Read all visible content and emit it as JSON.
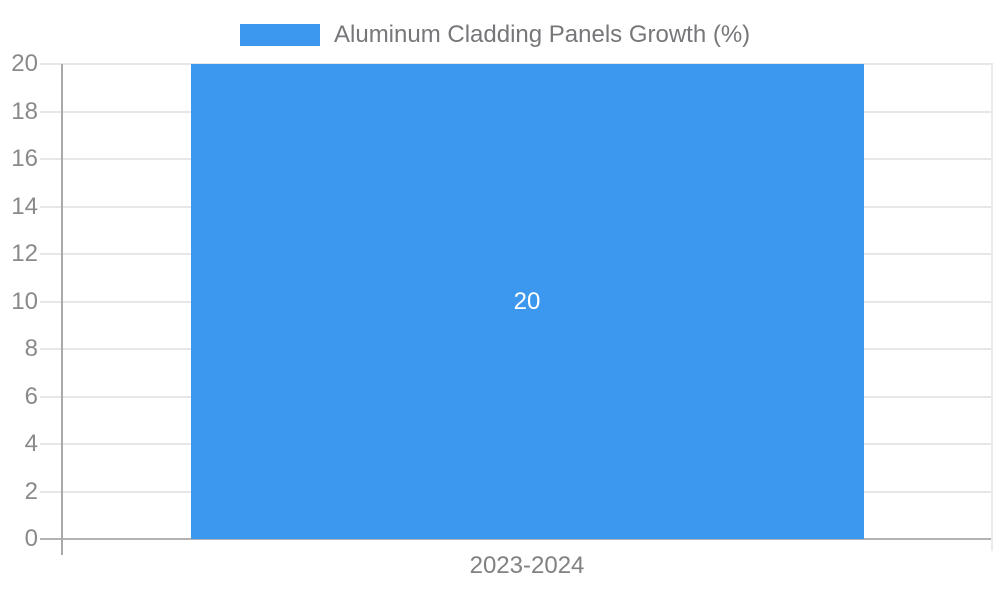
{
  "chart_data": {
    "type": "bar",
    "title": "Aluminum Cladding Panels Growth (%)",
    "categories": [
      "2023-2024"
    ],
    "values": [
      20
    ],
    "bar_label": "20",
    "xlabel": "",
    "ylabel": "",
    "ylim": [
      0,
      20
    ],
    "ytick_step": 2,
    "y_tick_labels": [
      "0",
      "2",
      "4",
      "6",
      "8",
      "10",
      "12",
      "14",
      "16",
      "18",
      "20"
    ],
    "grid": true,
    "legend_position": "top"
  },
  "colors": {
    "bar": "#3b98ee",
    "bar_value_text": "#ffffff",
    "legend_text": "#76777a",
    "tick_text": "#8a8a8a",
    "gridline": "#e7e7e7",
    "axis_line": "#a9a9a9",
    "baseline": "#b3b3b3",
    "background": "#ffffff"
  }
}
